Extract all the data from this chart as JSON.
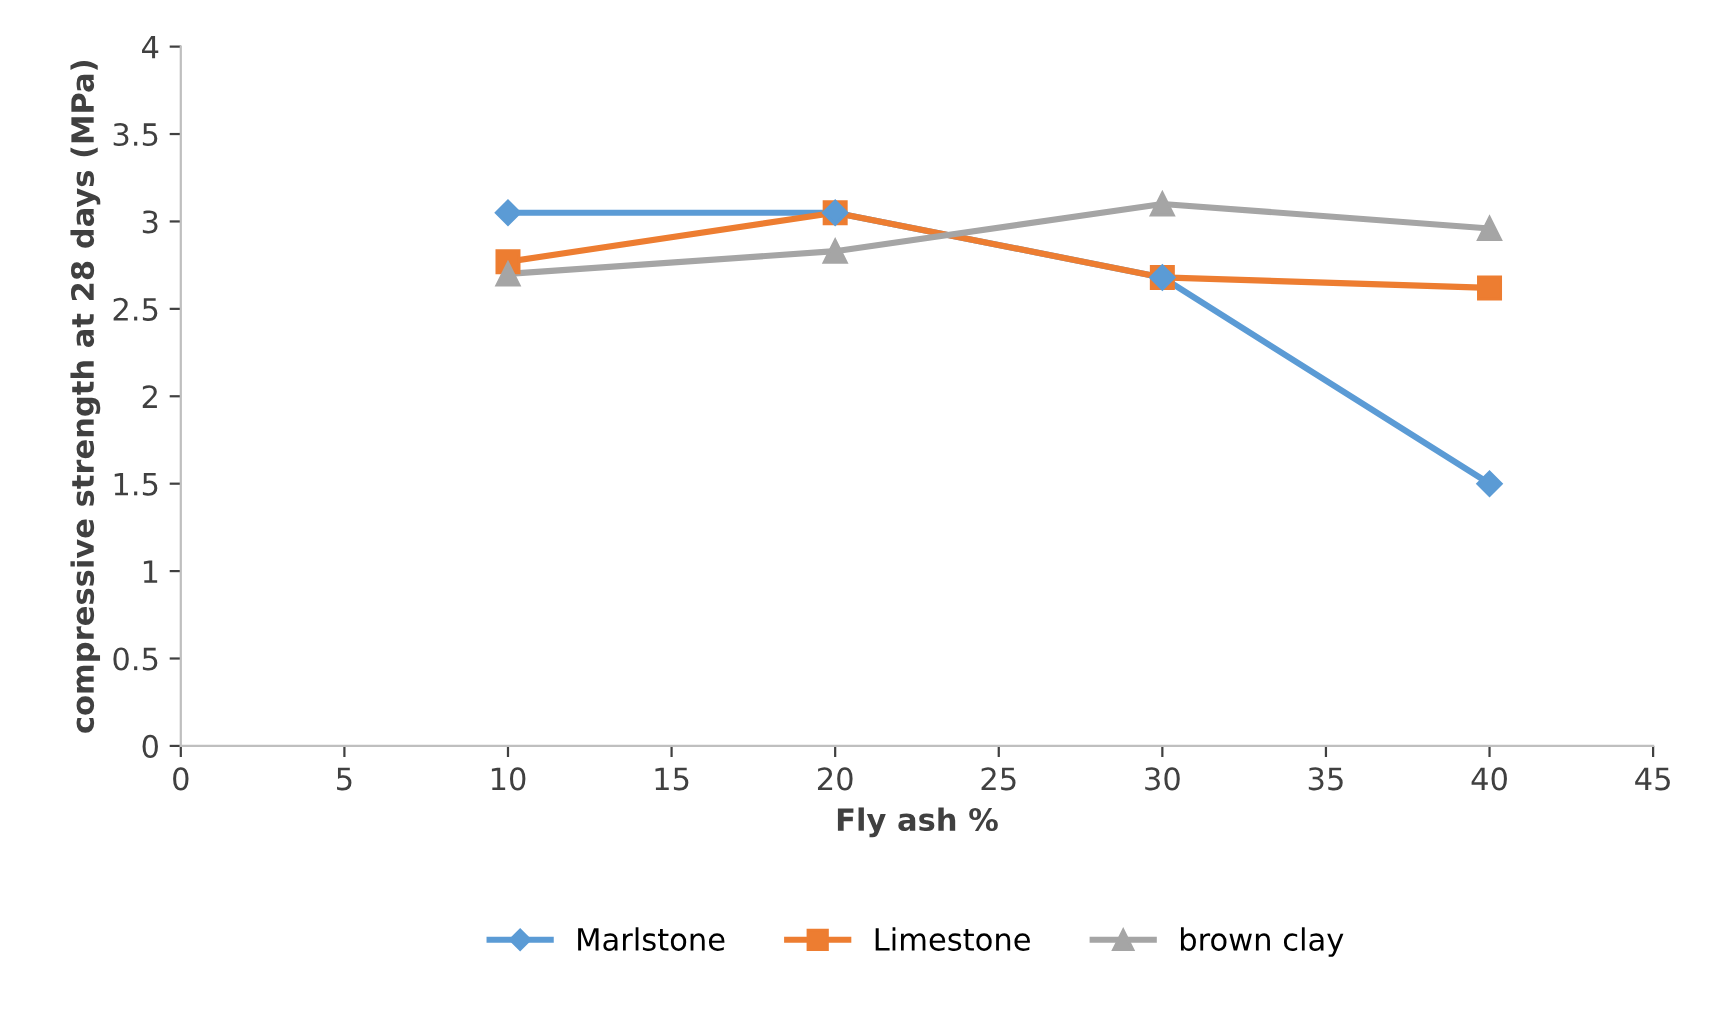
{
  "chart_data": {
    "type": "line",
    "xlabel": "Fly ash %",
    "ylabel": "compressive strength at 28 days (MPa)",
    "x": [
      10,
      20,
      30,
      40
    ],
    "series": [
      {
        "name": "Marlstone",
        "color": "#5b9bd5",
        "marker": "diamond",
        "values": [
          3.05,
          3.05,
          2.68,
          1.5
        ]
      },
      {
        "name": "Limestone",
        "color": "#ed7d31",
        "marker": "square",
        "values": [
          2.77,
          3.05,
          2.68,
          2.62
        ]
      },
      {
        "name": "brown clay",
        "color": "#a5a5a5",
        "marker": "triangle",
        "values": [
          2.7,
          2.83,
          3.1,
          2.96
        ]
      }
    ],
    "xlim": [
      0,
      45
    ],
    "xticks": [
      0,
      5,
      10,
      15,
      20,
      25,
      30,
      35,
      40,
      45
    ],
    "ylim": [
      0,
      4
    ],
    "yticks": [
      0,
      0.5,
      1,
      1.5,
      2,
      2.5,
      3,
      3.5,
      4
    ],
    "grid": false,
    "legend": "bottom",
    "line_style": "solid"
  }
}
